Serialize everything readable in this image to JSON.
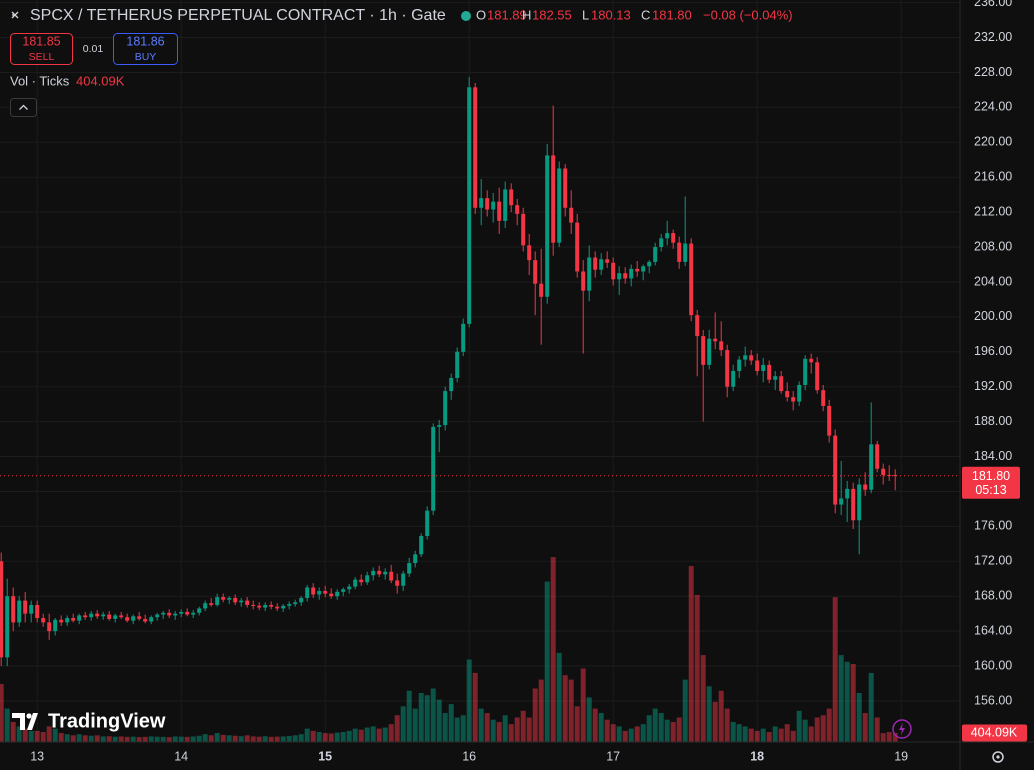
{
  "chart_data": {
    "type": "candlestick",
    "title": "SPCX / TETHERUS PERPETUAL CONTRACT · 1h · Gate",
    "legend": {
      "open": "O",
      "high": "H",
      "low": "L",
      "close": "C",
      "close_value": "181.80",
      "change": "−0.08 (−0.04%)",
      "volume": "404.09K"
    },
    "volume_title": "Vol · Ticks",
    "countdown": "05:13",
    "up_color": "#089981",
    "down_color": "#f23645",
    "grid": true,
    "xlim": [
      -6.2,
      153.8
    ],
    "xticks": [
      {
        "value": 0,
        "label": "13"
      },
      {
        "value": 24,
        "label": "14"
      },
      {
        "value": 48,
        "label": "15"
      },
      {
        "value": 72,
        "label": "16"
      },
      {
        "value": 96,
        "label": "17"
      },
      {
        "value": 120,
        "label": "18"
      },
      {
        "value": 144,
        "label": "19"
      }
    ],
    "ylim": [
      151.3,
      236.3
    ],
    "yticks": [
      {
        "value": 156,
        "label": "156.00"
      },
      {
        "value": 160,
        "label": "160.00"
      },
      {
        "value": 164,
        "label": "164.00"
      },
      {
        "value": 168,
        "label": "168.00"
      },
      {
        "value": 172,
        "label": "172.00"
      },
      {
        "value": 176,
        "label": "176.00"
      },
      {
        "value": 180,
        "label": "180.00"
      },
      {
        "value": 184,
        "label": "184.00"
      },
      {
        "value": 188,
        "label": "188.00"
      },
      {
        "value": 192,
        "label": "192.00"
      },
      {
        "value": 196,
        "label": "196.00"
      },
      {
        "value": 200,
        "label": "200.00"
      },
      {
        "value": 204,
        "label": "204.00"
      },
      {
        "value": 208,
        "label": "208.00"
      },
      {
        "value": 212,
        "label": "212.00"
      },
      {
        "value": 216,
        "label": "216.00"
      },
      {
        "value": 220,
        "label": "220.00"
      },
      {
        "value": 224,
        "label": "224.00"
      },
      {
        "value": 228,
        "label": "228.00"
      },
      {
        "value": 232,
        "label": "232.00"
      },
      {
        "value": 236,
        "label": "236.00"
      }
    ],
    "volume_ylim": [
      0,
      33300000
    ],
    "x": [
      -6,
      -5,
      -4,
      -3,
      -2,
      -1,
      0,
      1,
      2,
      3,
      4,
      5,
      6,
      7,
      8,
      9,
      10,
      11,
      12,
      13,
      14,
      15,
      16,
      17,
      18,
      19,
      20,
      21,
      22,
      23,
      24,
      25,
      26,
      27,
      28,
      29,
      30,
      31,
      32,
      33,
      34,
      35,
      36,
      37,
      38,
      39,
      40,
      41,
      42,
      43,
      44,
      45,
      46,
      47,
      48,
      49,
      50,
      51,
      52,
      53,
      54,
      55,
      56,
      57,
      58,
      59,
      60,
      61,
      62,
      63,
      64,
      65,
      66,
      67,
      68,
      69,
      70,
      71,
      72,
      73,
      74,
      75,
      76,
      77,
      78,
      79,
      80,
      81,
      82,
      83,
      84,
      85,
      86,
      87,
      88,
      89,
      90,
      91,
      92,
      93,
      94,
      95,
      96,
      97,
      98,
      99,
      100,
      101,
      102,
      103,
      104,
      105,
      106,
      107,
      108,
      109,
      110,
      111,
      112,
      113,
      114,
      115,
      116,
      117,
      118,
      119,
      120,
      121,
      122,
      123,
      124,
      125,
      126,
      127,
      128,
      129,
      130,
      131,
      132,
      133,
      134,
      135,
      136,
      137,
      138,
      139,
      140,
      141,
      142,
      143
    ],
    "open": [
      172,
      161,
      168,
      165,
      167.5,
      166,
      167,
      165.5,
      165,
      164,
      165.3,
      165,
      165.5,
      165.2,
      165.8,
      165.6,
      166,
      165.7,
      165.9,
      165.4,
      165.8,
      165.6,
      165.2,
      165.7,
      165.4,
      165.1,
      165.6,
      165.9,
      166.1,
      165.8,
      166,
      166.2,
      165.9,
      166.1,
      166.6,
      167.2,
      167,
      167.9,
      167.6,
      167.8,
      167.3,
      167.5,
      167,
      166.9,
      166.7,
      167,
      166.8,
      166.6,
      166.9,
      167.1,
      167.3,
      167.8,
      169,
      168.2,
      168.6,
      168.3,
      168,
      168.5,
      168.8,
      169.1,
      169.9,
      169.6,
      170.4,
      170.9,
      170.5,
      170.8,
      169.8,
      169.2,
      170.6,
      171.8,
      172.8,
      174.9,
      177.8,
      187.4,
      187.6,
      191.5,
      193,
      196,
      199.2,
      226.3,
      212.5,
      213.6,
      212.3,
      213.2,
      211,
      214.6,
      212.8,
      211.8,
      208.2,
      206.5,
      203.8,
      202.3,
      218.5,
      208.5,
      217,
      212.5,
      210.8,
      205.2,
      203,
      206.8,
      205.4,
      206.6,
      206.2,
      204.3,
      205,
      204.4,
      205.5,
      205.2,
      205.8,
      206.3,
      208,
      209,
      209.6,
      208.5,
      206.3,
      208.4,
      200.2,
      197.8,
      194.5,
      197.5,
      197.2,
      196.2,
      192,
      193.8,
      195.1,
      195.6,
      195,
      193.8,
      194.5,
      192.8,
      193.2,
      191.5,
      190.8,
      190.3,
      192.2,
      195.2,
      194.8,
      191.6,
      189.8,
      186.4,
      178.5,
      179.2,
      180.3,
      176.7,
      180.8,
      180.2,
      185.4,
      182.6,
      181.9,
      181.89
    ],
    "high": [
      173,
      170,
      169,
      168,
      168.5,
      167.5,
      167.5,
      166,
      166,
      165.5,
      165.8,
      165.8,
      166,
      166,
      166.2,
      166.3,
      166.4,
      166.2,
      166.3,
      166,
      166.2,
      166,
      165.9,
      166.2,
      165.9,
      165.8,
      166.1,
      166.3,
      166.5,
      166.3,
      166.5,
      166.6,
      166.4,
      166.8,
      167.5,
      167.8,
      168.3,
      168.3,
      168,
      168.2,
      167.8,
      167.9,
      167.5,
      167.3,
      167.3,
      167.4,
      167.2,
      167.1,
      167.4,
      167.6,
      168,
      169.3,
      169.5,
      169,
      169.2,
      168.9,
      168.8,
      169,
      169.4,
      170.2,
      170.5,
      170.8,
      171.3,
      171.5,
      171.2,
      171.6,
      170.6,
      170.9,
      172.4,
      173.2,
      175.2,
      178.3,
      187.8,
      188.2,
      192,
      193.5,
      196.5,
      199.8,
      227.5,
      226.8,
      215.8,
      214.5,
      214.2,
      214.8,
      215.5,
      215.3,
      213.5,
      212.5,
      209.5,
      207.5,
      207.8,
      219.8,
      224.2,
      217.8,
      217.5,
      214.5,
      211.8,
      206.5,
      208.2,
      207.5,
      207.3,
      207.5,
      206.8,
      205.8,
      205.7,
      206,
      206.4,
      206,
      206.5,
      208.5,
      209.5,
      211,
      210,
      209.2,
      213.8,
      209,
      200.8,
      198.5,
      198.5,
      200.5,
      199.5,
      196.8,
      194.5,
      195.5,
      196.6,
      196.2,
      195.8,
      195.3,
      195,
      193.8,
      193.8,
      192.5,
      191.5,
      192.6,
      195.6,
      195.8,
      195.4,
      192.2,
      190.5,
      187.1,
      183.5,
      181.2,
      181,
      181.5,
      182.2,
      190.2,
      185.8,
      183.2,
      183,
      182.55
    ],
    "low": [
      160,
      160,
      164,
      164.5,
      165,
      165,
      165,
      164.5,
      163,
      163.5,
      164.6,
      164.6,
      165,
      164.8,
      165.3,
      165.2,
      165.4,
      165.3,
      165.2,
      165,
      165.4,
      165,
      164.8,
      165.2,
      164.9,
      164.8,
      165.2,
      165.4,
      165.5,
      165.3,
      165.6,
      165.7,
      165.5,
      165.8,
      166.3,
      166.8,
      166.8,
      167.3,
      167.1,
      167,
      166.8,
      166.7,
      166.5,
      166.4,
      166.3,
      166.5,
      166.3,
      166.2,
      166.5,
      166.8,
      166.9,
      167.4,
      167.8,
      167.6,
      167.9,
      167.7,
      167.6,
      168,
      168.3,
      168.8,
      169.2,
      169.3,
      169.8,
      170.2,
      169.9,
      169.5,
      168.3,
      168.6,
      170.2,
      171.3,
      172.5,
      174.5,
      177.3,
      184.5,
      187,
      190.5,
      192.5,
      195.5,
      198.8,
      211.8,
      210.5,
      211.5,
      210.8,
      209.5,
      210.2,
      212,
      210.5,
      207.5,
      204.8,
      200.2,
      196.8,
      201.5,
      207,
      208,
      211.5,
      209.5,
      204.5,
      195.8,
      201.8,
      204.5,
      204.8,
      205.6,
      203.6,
      202.5,
      203.8,
      203.5,
      204.6,
      204.2,
      205,
      205.9,
      207.5,
      208.2,
      207.8,
      205.5,
      205.8,
      199.5,
      193.2,
      188,
      194,
      196.3,
      195.5,
      190.8,
      191.5,
      193,
      194.3,
      194.5,
      193.3,
      192.5,
      192.4,
      191.6,
      191.2,
      190.3,
      189.3,
      189.8,
      191.6,
      193.5,
      191.2,
      189.2,
      185.6,
      177.5,
      177.3,
      176.5,
      175.7,
      172.8,
      179.5,
      179.8,
      182.2,
      180.8,
      181.2,
      180.13
    ],
    "close": [
      161,
      168,
      165,
      167.5,
      166,
      167,
      165.5,
      165,
      164,
      165.3,
      165,
      165.5,
      165.2,
      165.8,
      165.6,
      166,
      165.7,
      165.9,
      165.4,
      165.8,
      165.6,
      165.2,
      165.7,
      165.4,
      165.1,
      165.6,
      165.9,
      166.1,
      165.8,
      166,
      166.2,
      165.9,
      166.1,
      166.6,
      167.2,
      167,
      167.9,
      167.6,
      167.8,
      167.3,
      167.5,
      167,
      166.9,
      166.7,
      167,
      166.8,
      166.6,
      166.9,
      167.1,
      167.3,
      167.8,
      169,
      168.2,
      168.6,
      168.3,
      168,
      168.5,
      168.8,
      169.1,
      169.9,
      169.6,
      170.4,
      170.9,
      170.5,
      170.8,
      169.8,
      169.2,
      170.6,
      171.8,
      172.8,
      174.9,
      177.8,
      187.4,
      187.6,
      191.5,
      193,
      196,
      199.2,
      226.3,
      212.5,
      213.6,
      212.3,
      213.2,
      211,
      214.6,
      212.8,
      211.8,
      208.2,
      206.5,
      203.8,
      202.3,
      218.5,
      208.5,
      217,
      212.5,
      210.8,
      205.2,
      203,
      206.8,
      205.4,
      206.6,
      206.2,
      204.3,
      205,
      204.4,
      205.5,
      205.2,
      205.8,
      206.3,
      208,
      209,
      209.6,
      208.5,
      206.3,
      208.4,
      200.2,
      197.8,
      194.5,
      197.5,
      197.2,
      196.2,
      192,
      193.8,
      195.1,
      195.6,
      195,
      193.8,
      194.5,
      192.8,
      193.2,
      191.5,
      190.8,
      190.3,
      192.2,
      195.2,
      194.8,
      191.6,
      189.8,
      186.4,
      178.5,
      179.2,
      180.3,
      176.7,
      180.8,
      180.2,
      185.4,
      182.6,
      181.9,
      181.89,
      181.8
    ],
    "volume": [
      2600000,
      1500000,
      900000,
      700000,
      600000,
      500000,
      500000,
      450000,
      700000,
      600000,
      400000,
      350000,
      300000,
      350000,
      300000,
      280000,
      300000,
      250000,
      260000,
      240000,
      250000,
      230000,
      240000,
      220000,
      230000,
      250000,
      240000,
      230000,
      220000,
      250000,
      240000,
      230000,
      250000,
      280000,
      350000,
      300000,
      400000,
      320000,
      300000,
      280000,
      260000,
      300000,
      250000,
      240000,
      260000,
      230000,
      240000,
      250000,
      270000,
      300000,
      350000,
      600000,
      500000,
      450000,
      400000,
      380000,
      420000,
      450000,
      500000,
      600000,
      550000,
      650000,
      700000,
      600000,
      650000,
      800000,
      1200000,
      1600000,
      2300000,
      1500000,
      2200000,
      2100000,
      2400000,
      1900000,
      1300000,
      1700000,
      1100000,
      1200000,
      3700000,
      3100000,
      1500000,
      1300000,
      1000000,
      900000,
      1200000,
      800000,
      1100000,
      1400000,
      1100000,
      2400000,
      2800000,
      7200000,
      8300000,
      4000000,
      3000000,
      2800000,
      1600000,
      3300000,
      2000000,
      1500000,
      1300000,
      1000000,
      800000,
      700000,
      500000,
      600000,
      700000,
      800000,
      1200000,
      1500000,
      1300000,
      1000000,
      900000,
      1100000,
      2800000,
      7900000,
      6600000,
      3900000,
      2500000,
      1800000,
      2300000,
      1500000,
      900000,
      800000,
      700000,
      600000,
      500000,
      600000,
      450000,
      700000,
      600000,
      800000,
      500000,
      1400000,
      1000000,
      700000,
      1100000,
      1200000,
      1500000,
      6500000,
      3900000,
      3600000,
      3500000,
      2200000,
      1300000,
      3100000,
      1100000,
      400000,
      450000,
      404090
    ]
  },
  "order_panel": {
    "sell_price": 181.85,
    "sell": "SELL",
    "spread": 0.01,
    "buy_price": 181.86,
    "buy": "BUY"
  },
  "brand": "TradingView"
}
